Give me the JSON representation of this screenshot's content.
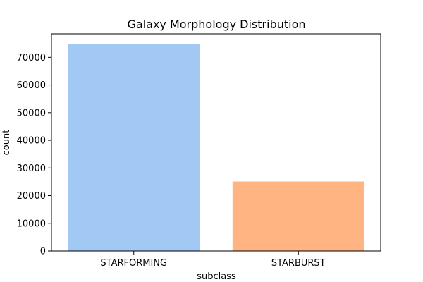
{
  "chart_data": {
    "type": "bar",
    "title": "Galaxy Morphology Distribution",
    "xlabel": "subclass",
    "ylabel": "count",
    "categories": [
      "STARFORMING",
      "STARBURST"
    ],
    "values": [
      74900,
      25100
    ],
    "colors": [
      "#a1c9f4",
      "#ffb482"
    ],
    "ylim": [
      0,
      78500
    ],
    "yticks": [
      0,
      10000,
      20000,
      30000,
      40000,
      50000,
      60000,
      70000
    ],
    "grid": false,
    "legend": "none"
  }
}
